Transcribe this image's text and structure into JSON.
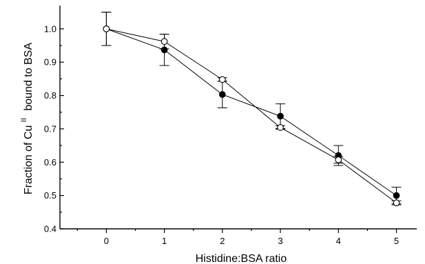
{
  "chart_data": {
    "type": "line",
    "xlabel": "Histidine:BSA ratio",
    "ylabel_main": "Fraction of Cu",
    "ylabel_superscript": "II",
    "ylabel_tail": "bound to BSA",
    "xlim": [
      -0.8,
      5.35
    ],
    "ylim": [
      0.4,
      1.07
    ],
    "xticks": [
      0,
      1,
      2,
      3,
      4,
      5
    ],
    "yticks": [
      0.4,
      0.5,
      0.6,
      0.7,
      0.8,
      0.9,
      1.0
    ],
    "xtick_labels": [
      "0",
      "1",
      "2",
      "3",
      "4",
      "5"
    ],
    "ytick_labels": [
      "0.4",
      "0.5",
      "0.6",
      "0.7",
      "0.8",
      "0.9",
      "1.0"
    ],
    "grid": false,
    "series": [
      {
        "marker": "filled-circle",
        "color": "#000000",
        "x": [
          0,
          1,
          2,
          3,
          4,
          5
        ],
        "y": [
          1.0,
          0.937,
          0.803,
          0.738,
          0.62,
          0.5
        ],
        "err": [
          0.05,
          0.047,
          0.04,
          0.037,
          0.03,
          0.025
        ]
      },
      {
        "marker": "open-circle",
        "color": "#000000",
        "x": [
          0,
          1,
          2,
          3,
          4,
          5
        ],
        "y": [
          1.0,
          0.962,
          0.848,
          0.704,
          0.607,
          0.478
        ],
        "err": [
          0.05,
          0.022,
          0.005,
          0.005,
          0.01,
          0.006
        ]
      }
    ]
  }
}
